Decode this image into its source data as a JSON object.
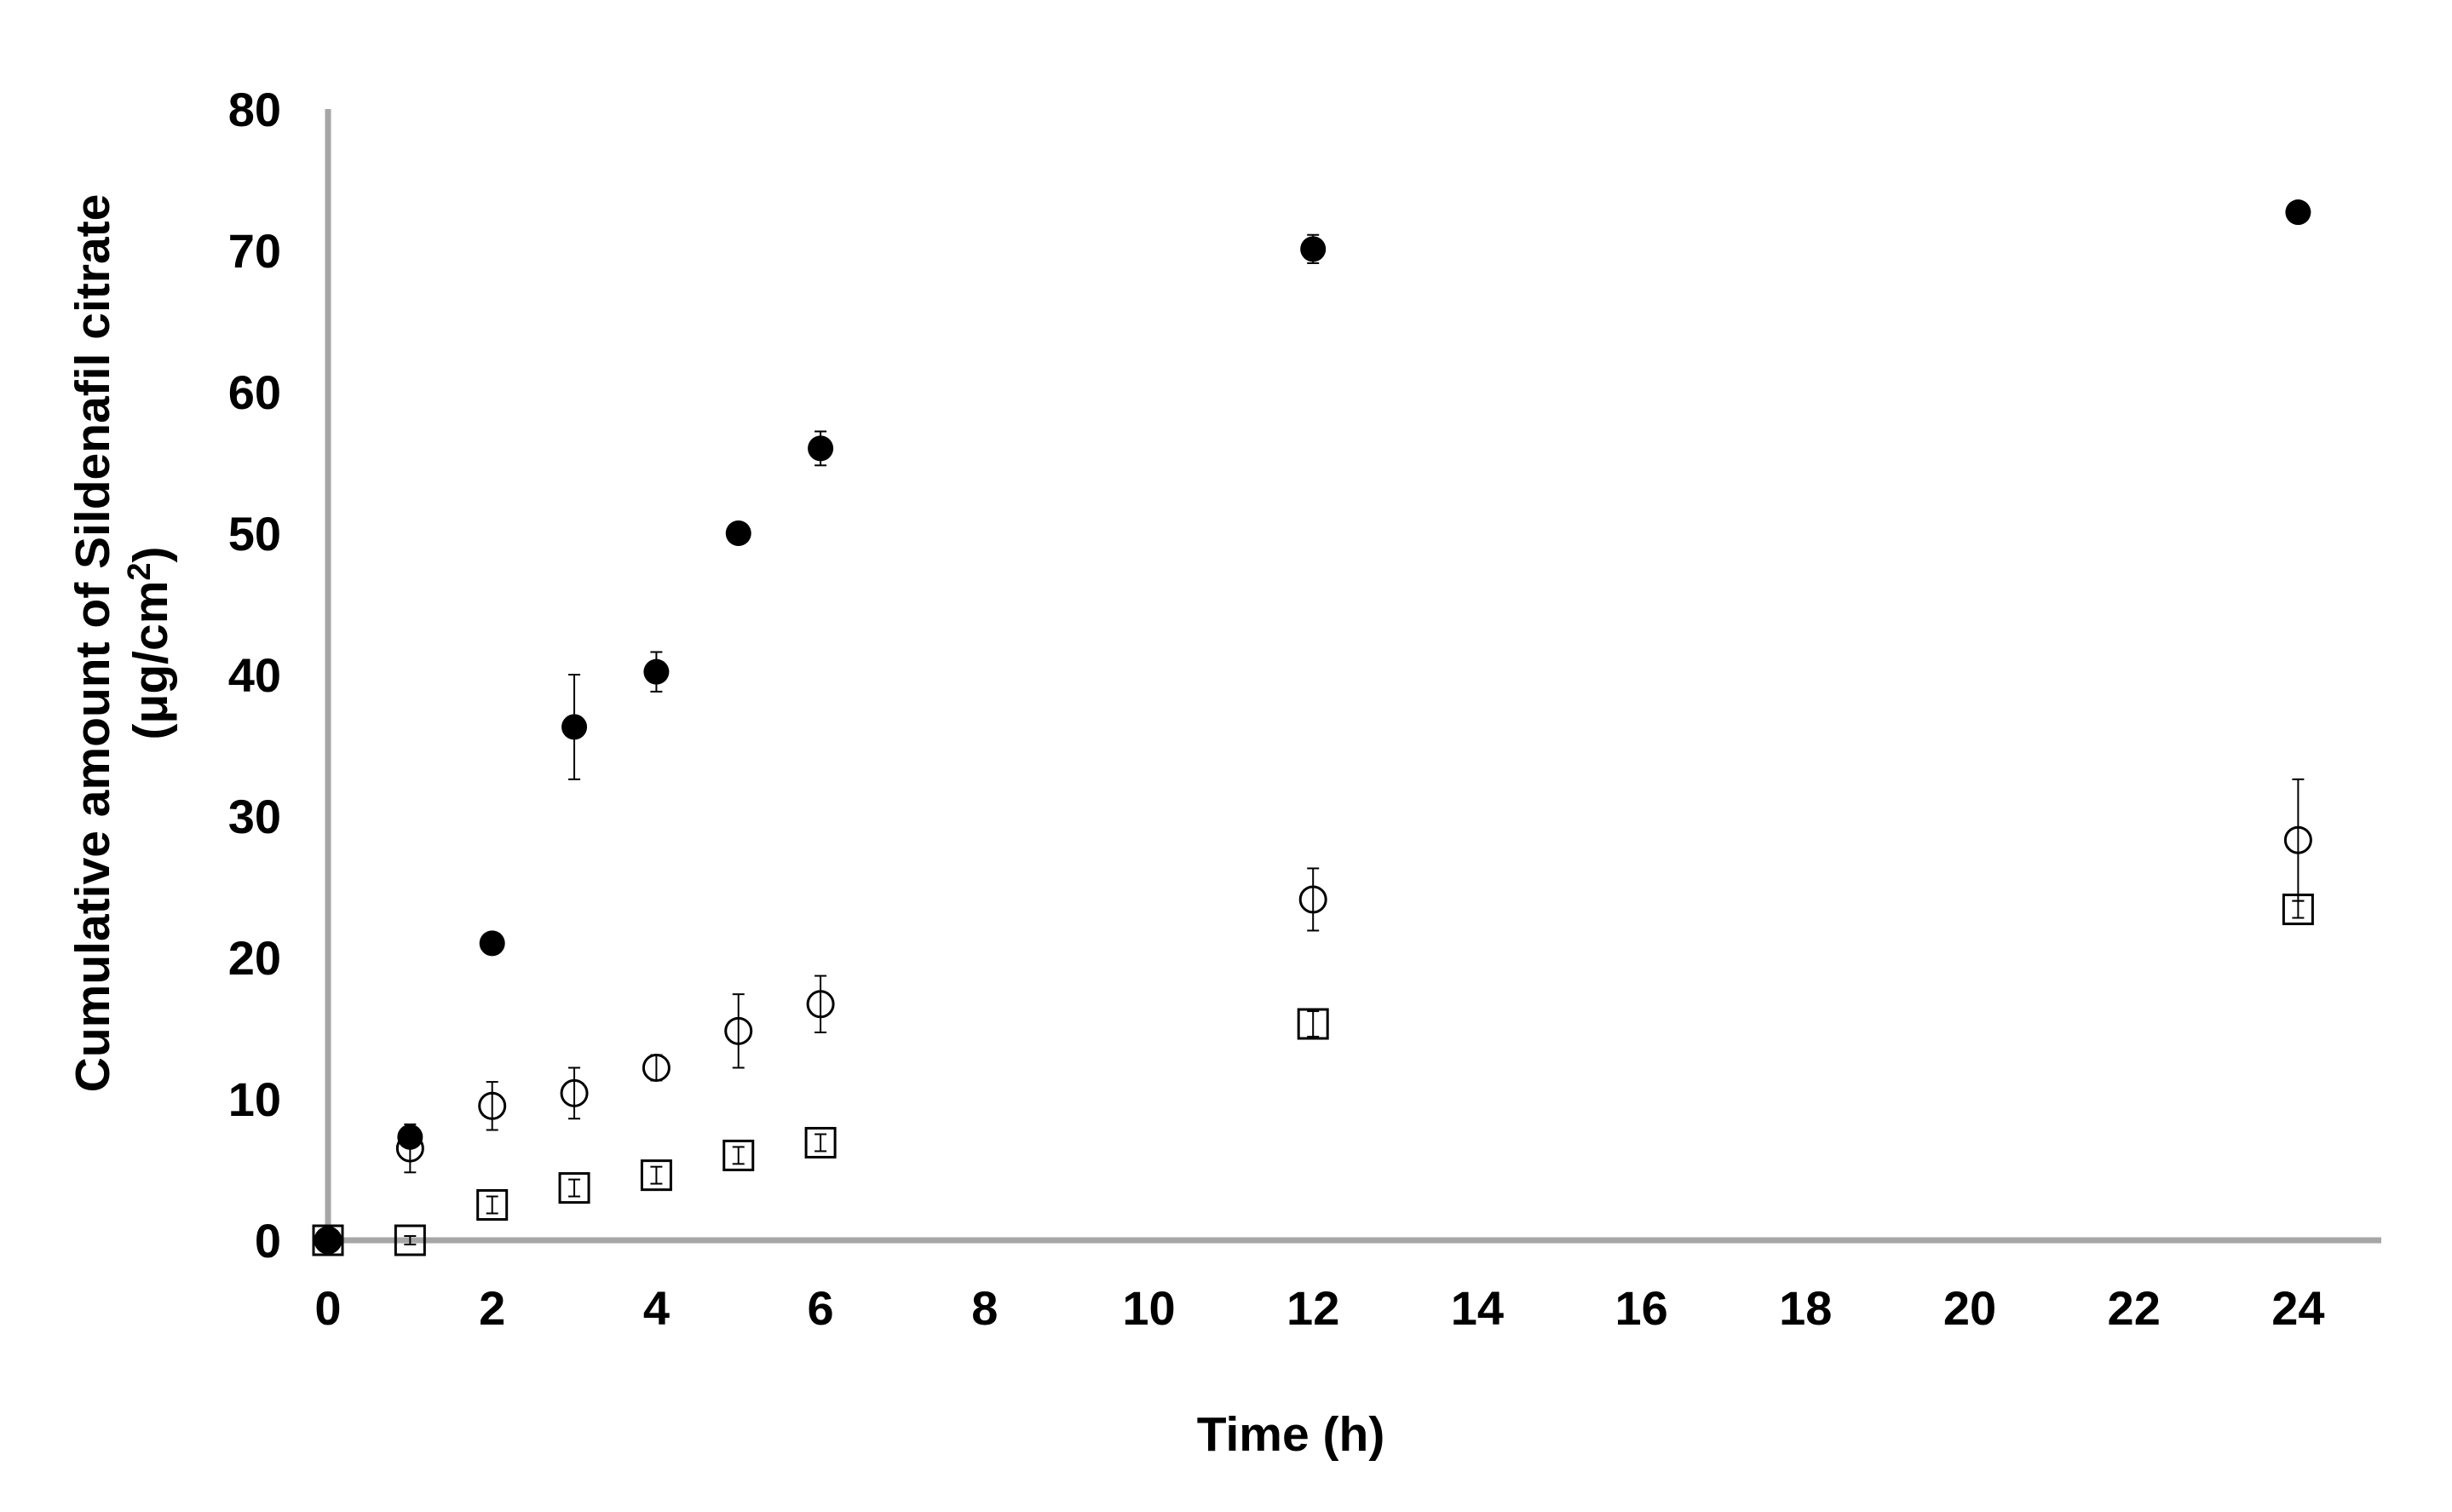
{
  "chart_data": {
    "type": "scatter",
    "xlabel": "Time (h)",
    "ylabel_line1": "Cumulative amount  of Sildenafil citrate",
    "ylabel_line2_prefix": "(μg/cm",
    "ylabel_line2_sup": "2",
    "ylabel_line2_suffix": ")",
    "xlim": [
      0,
      25
    ],
    "ylim": [
      0,
      80
    ],
    "x_ticks": [
      0,
      2,
      4,
      6,
      8,
      10,
      12,
      14,
      16,
      18,
      20,
      22,
      24
    ],
    "y_ticks": [
      0,
      10,
      20,
      30,
      40,
      50,
      60,
      70,
      80
    ],
    "grid": false,
    "legend": "none",
    "series": [
      {
        "marker": "filled-circle",
        "color": "#000000",
        "x": [
          0,
          1,
          2,
          3,
          4,
          5,
          6,
          12,
          24
        ],
        "y": [
          0,
          7.3,
          21,
          36.3,
          40.2,
          50,
          56,
          70.1,
          72.7
        ],
        "err": [
          0,
          0.4,
          0.4,
          3.7,
          1.4,
          0.4,
          1.2,
          1.0,
          0.4
        ]
      },
      {
        "marker": "open-circle",
        "color": "#000000",
        "x": [
          0,
          1,
          2,
          3,
          4,
          5,
          6,
          12,
          24
        ],
        "y": [
          0,
          6.5,
          9.5,
          10.4,
          12.2,
          14.8,
          16.7,
          24.1,
          28.3
        ],
        "err": [
          0,
          1.7,
          1.7,
          1.8,
          0.9,
          2.6,
          2.0,
          2.2,
          4.3
        ]
      },
      {
        "marker": "open-square",
        "color": "#000000",
        "x": [
          0,
          1,
          2,
          3,
          4,
          5,
          6,
          12,
          24
        ],
        "y": [
          0,
          0,
          2.5,
          3.7,
          4.6,
          6.0,
          6.9,
          15.3,
          23.4
        ],
        "err": [
          0,
          0.3,
          0.6,
          0.6,
          0.6,
          0.6,
          0.6,
          0.9,
          0.6
        ]
      }
    ]
  }
}
